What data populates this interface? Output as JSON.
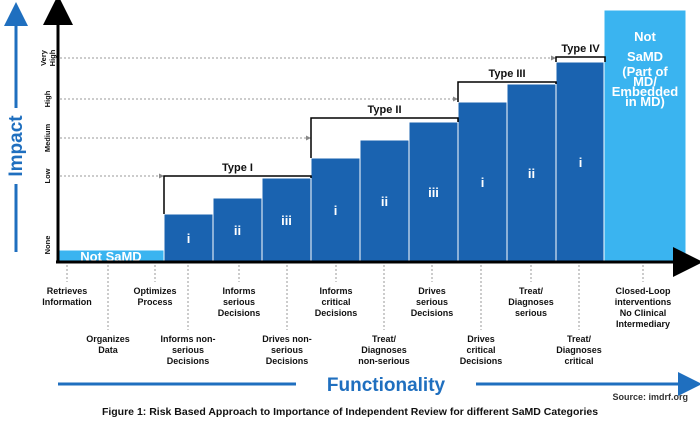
{
  "axes": {
    "y_title": "Impact",
    "x_title": "Functionality",
    "y_ticks": [
      "None",
      "Low",
      "Medium",
      "High",
      "Very High"
    ]
  },
  "colors": {
    "bar_dark": "#1a63b0",
    "bar_light": "#3ab4f0",
    "axis_arrow": "#1f6fbf",
    "white": "#ffffff"
  },
  "types": [
    "Type I",
    "Type II",
    "Type III",
    "Type IV"
  ],
  "bars": [
    {
      "label": "Not SaMD",
      "level": 0.3,
      "style": "light"
    },
    {
      "label": "i",
      "level": 1.2,
      "style": "dark"
    },
    {
      "label": "ii",
      "level": 1.6,
      "style": "dark"
    },
    {
      "label": "iii",
      "level": 2.1,
      "style": "dark"
    },
    {
      "label": "i",
      "level": 2.6,
      "style": "dark"
    },
    {
      "label": "ii",
      "level": 3.05,
      "style": "dark"
    },
    {
      "label": "iii",
      "level": 3.5,
      "style": "dark"
    },
    {
      "label": "i",
      "level": 4.0,
      "style": "dark"
    },
    {
      "label": "ii",
      "level": 4.45,
      "style": "dark"
    },
    {
      "label": "i",
      "level": 5.0,
      "style": "dark"
    },
    {
      "label": "Not SaMD",
      "sublabel": [
        "(Part of",
        "MD/",
        "Embedded",
        "in MD)"
      ],
      "level": 6.3,
      "style": "light"
    }
  ],
  "functions": [
    [
      "Retrieves",
      "Information"
    ],
    [
      "Organizes",
      "Data"
    ],
    [
      "Optimizes",
      "Process"
    ],
    [
      "Informs non-",
      "serious",
      "Decisions"
    ],
    [
      "Informs",
      "serious",
      "Decisions"
    ],
    [
      "Drives non-",
      "serious",
      "Decisions"
    ],
    [
      "Informs",
      "critical",
      "Decisions"
    ],
    [
      "Treat/",
      "Diagnoses",
      "non-serious"
    ],
    [
      "Drives",
      "serious",
      "Decisions"
    ],
    [
      "Drives",
      "critical",
      "Decisions"
    ],
    [
      "Treat/",
      "Diagnoses",
      "serious"
    ],
    [
      "Treat/",
      "Diagnoses",
      "critical"
    ],
    [
      "Closed-Loop",
      "interventions",
      "No Clinical",
      "Intermediary"
    ]
  ],
  "source": "Source: imdrf.org",
  "caption": "Figure 1: Risk Based Approach to Importance of Independent Review for different SaMD Categories"
}
